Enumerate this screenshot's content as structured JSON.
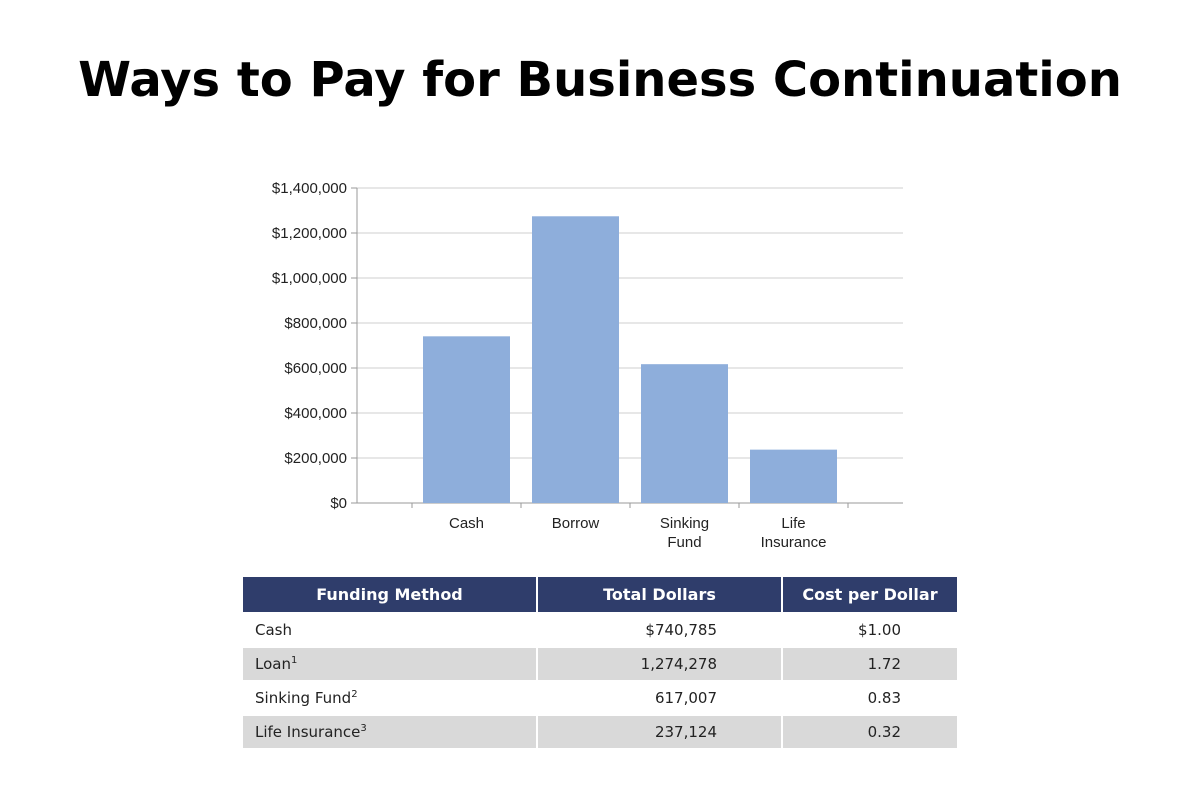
{
  "page": {
    "title": "Ways to Pay for Business Continuation"
  },
  "chart_data": {
    "type": "bar",
    "categories": [
      [
        "Cash"
      ],
      [
        "Borrow"
      ],
      [
        "Sinking",
        "Fund"
      ],
      [
        "Life",
        "Insurance"
      ]
    ],
    "values": [
      740785,
      1274278,
      617007,
      237124
    ],
    "ylim": [
      0,
      1400000
    ],
    "yticks": [
      0,
      200000,
      400000,
      600000,
      800000,
      1000000,
      1200000,
      1400000
    ],
    "ytick_labels": [
      "$0",
      "$200,000",
      "$400,000",
      "$600,000",
      "$800,000",
      "$1,000,000",
      "$1,200,000",
      "$1,400,000"
    ],
    "grid": true,
    "bar_color": "#8eaedb",
    "title": "",
    "xlabel": "",
    "ylabel": ""
  },
  "table": {
    "header_color": "#2f3d6b",
    "headers": [
      "Funding Method",
      "Total Dollars",
      "Cost per Dollar"
    ],
    "rows": [
      {
        "method": "Cash",
        "sup": "",
        "total": "$740,785",
        "cost": "$1.00"
      },
      {
        "method": "Loan",
        "sup": "1",
        "total": "1,274,278",
        "cost": "1.72"
      },
      {
        "method": "Sinking Fund",
        "sup": "2",
        "total": "617,007",
        "cost": "0.83"
      },
      {
        "method": "Life Insurance",
        "sup": "3",
        "total": "237,124",
        "cost": "0.32"
      }
    ]
  }
}
